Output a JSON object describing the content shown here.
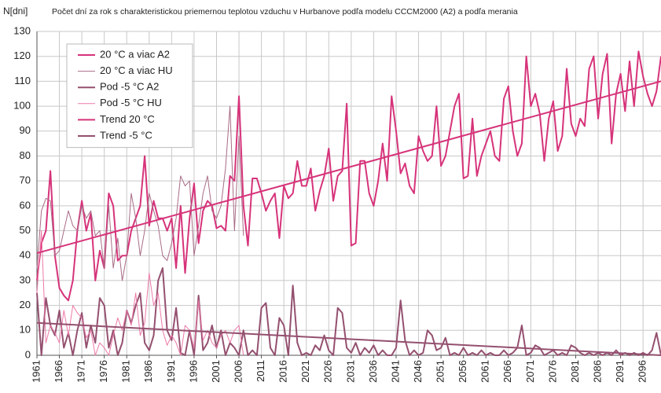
{
  "chart_data": {
    "type": "line",
    "title": "Počet dní za rok s charakteristickou priemernou teplotou vzduchu v Hurbanove podľa modelu CCCM2000 (A2) a podľa merania",
    "y_label": "N[dni]",
    "x": [
      1961,
      1962,
      1963,
      1964,
      1965,
      1966,
      1967,
      1968,
      1969,
      1970,
      1971,
      1972,
      1973,
      1974,
      1975,
      1976,
      1977,
      1978,
      1979,
      1980,
      1981,
      1982,
      1983,
      1984,
      1985,
      1986,
      1987,
      1988,
      1989,
      1990,
      1991,
      1992,
      1993,
      1994,
      1995,
      1996,
      1997,
      1998,
      1999,
      2000,
      2001,
      2002,
      2003,
      2004,
      2005,
      2006,
      2007,
      2008,
      2009,
      2010,
      2011,
      2012,
      2013,
      2014,
      2015,
      2016,
      2017,
      2018,
      2019,
      2020,
      2021,
      2022,
      2023,
      2024,
      2025,
      2026,
      2027,
      2028,
      2029,
      2030,
      2031,
      2032,
      2033,
      2034,
      2035,
      2036,
      2037,
      2038,
      2039,
      2040,
      2041,
      2042,
      2043,
      2044,
      2045,
      2046,
      2047,
      2048,
      2049,
      2050,
      2051,
      2052,
      2053,
      2054,
      2055,
      2056,
      2057,
      2058,
      2059,
      2060,
      2061,
      2062,
      2063,
      2064,
      2065,
      2066,
      2067,
      2068,
      2069,
      2070,
      2071,
      2072,
      2073,
      2074,
      2075,
      2076,
      2077,
      2078,
      2079,
      2080,
      2081,
      2082,
      2083,
      2084,
      2085,
      2086,
      2087,
      2088,
      2089,
      2090,
      2091,
      2092,
      2093,
      2094,
      2095,
      2096,
      2097,
      2098,
      2099,
      2100
    ],
    "series": [
      {
        "name": "20 °C a viac A2",
        "color": "#d6337a",
        "width": 2,
        "values": [
          30,
          45,
          50,
          74,
          40,
          27,
          24,
          22,
          30,
          50,
          62,
          50,
          57,
          30,
          42,
          35,
          65,
          60,
          38,
          40,
          40,
          50,
          55,
          60,
          80,
          52,
          62,
          55,
          55,
          50,
          55,
          35,
          60,
          33,
          55,
          69,
          45,
          58,
          62,
          60,
          51,
          52,
          50,
          72,
          70,
          104,
          60,
          44,
          71,
          71,
          65,
          58,
          62,
          65,
          47,
          68,
          63,
          65,
          78,
          68,
          68,
          75,
          58,
          66,
          72,
          83,
          62,
          72,
          74,
          101,
          44,
          45,
          78,
          78,
          65,
          60,
          70,
          85,
          70,
          104,
          90,
          73,
          77,
          68,
          65,
          88,
          82,
          78,
          80,
          100,
          76,
          80,
          90,
          100,
          105,
          71,
          72,
          95,
          72,
          80,
          85,
          90,
          80,
          78,
          103,
          108,
          90,
          80,
          85,
          120,
          100,
          105,
          97,
          78,
          95,
          102,
          82,
          88,
          115,
          93,
          88,
          95,
          92,
          115,
          120,
          95,
          113,
          121,
          85,
          105,
          113,
          98,
          118,
          100,
          122,
          112,
          105,
          100,
          106,
          120
        ]
      },
      {
        "name": "20 °C a viac HU",
        "color": "#a86b86",
        "width": 1,
        "x": [
          1961,
          1962,
          1963,
          1964,
          1965,
          1966,
          1967,
          1968,
          1969,
          1970,
          1971,
          1972,
          1973,
          1974,
          1975,
          1976,
          1977,
          1978,
          1979,
          1980,
          1981,
          1982,
          1983,
          1984,
          1985,
          1986,
          1987,
          1988,
          1989,
          1990,
          1991,
          1992,
          1993,
          1994,
          1995,
          1996,
          1997,
          1998,
          1999,
          2000,
          2001,
          2002,
          2003,
          2004,
          2005,
          2006,
          2007
        ],
        "values": [
          35,
          58,
          63,
          62,
          40,
          42,
          50,
          58,
          52,
          50,
          60,
          55,
          58,
          48,
          50,
          35,
          60,
          35,
          47,
          30,
          40,
          65,
          55,
          40,
          50,
          65,
          58,
          52,
          40,
          38,
          45,
          55,
          72,
          68,
          70,
          40,
          52,
          65,
          72,
          58,
          55,
          60,
          75,
          100,
          50,
          88,
          48
        ]
      },
      {
        "name": "Pod -5 °C A2",
        "color": "#94506f",
        "width": 2,
        "values": [
          25,
          0,
          23,
          12,
          8,
          18,
          3,
          9,
          0,
          10,
          17,
          3,
          12,
          5,
          23,
          20,
          3,
          10,
          0,
          5,
          18,
          13,
          20,
          25,
          5,
          2,
          8,
          30,
          35,
          10,
          6,
          19,
          1,
          0,
          10,
          0,
          24,
          2,
          5,
          12,
          3,
          10,
          0,
          5,
          3,
          0,
          10,
          0,
          2,
          0,
          19,
          21,
          3,
          0,
          15,
          12,
          0,
          28,
          5,
          0,
          1,
          0,
          4,
          2,
          8,
          2,
          0,
          19,
          17,
          3,
          1,
          5,
          0,
          3,
          1,
          4,
          0,
          2,
          0,
          0,
          3,
          22,
          6,
          0,
          2,
          0,
          1,
          10,
          8,
          2,
          3,
          7,
          0,
          1,
          0,
          3,
          0,
          1,
          0,
          2,
          0,
          1,
          0,
          0,
          2,
          0,
          1,
          3,
          12,
          0,
          1,
          4,
          3,
          0,
          1,
          2,
          0,
          1,
          0,
          4,
          3,
          1,
          0,
          1,
          0,
          1,
          0,
          1,
          0,
          2,
          0,
          1,
          0,
          1,
          0,
          1,
          0,
          2,
          9,
          0
        ]
      },
      {
        "name": "Pod -5 °C HU",
        "color": "#ec7aa8",
        "width": 1,
        "x": [
          1961,
          1962,
          1963,
          1964,
          1965,
          1966,
          1967,
          1968,
          1969,
          1970,
          1971,
          1972,
          1973,
          1974,
          1975,
          1976,
          1977,
          1978,
          1979,
          1980,
          1981,
          1982,
          1983,
          1984,
          1985,
          1986,
          1987,
          1988,
          1989,
          1990,
          1991,
          1992,
          1993,
          1994,
          1995,
          1996,
          1997,
          1998,
          1999,
          2000,
          2001,
          2002,
          2003,
          2004,
          2005,
          2006,
          2007
        ],
        "values": [
          25,
          50,
          5,
          12,
          9,
          5,
          18,
          8,
          20,
          17,
          15,
          7,
          10,
          0,
          5,
          3,
          0,
          8,
          15,
          10,
          18,
          12,
          25,
          8,
          13,
          33,
          20,
          25,
          10,
          4,
          8,
          5,
          0,
          12,
          10,
          3,
          22,
          6,
          10,
          5,
          3,
          8,
          10,
          5,
          10,
          12,
          0
        ]
      },
      {
        "name": "Trend 20 °C",
        "color": "#d6337a",
        "width": 2,
        "x": [
          1961,
          2100
        ],
        "values": [
          41,
          110
        ]
      },
      {
        "name": "Trend -5 °C",
        "color": "#94506f",
        "width": 2,
        "x": [
          1961,
          2100
        ],
        "values": [
          13,
          0
        ]
      }
    ],
    "xlim": [
      1961,
      2100
    ],
    "xticks": [
      1961,
      1966,
      1971,
      1976,
      1981,
      1986,
      1991,
      1996,
      2001,
      2006,
      2011,
      2016,
      2021,
      2026,
      2031,
      2036,
      2041,
      2046,
      2051,
      2056,
      2061,
      2066,
      2071,
      2076,
      2081,
      2086,
      2091,
      2096
    ],
    "ylim": [
      0,
      130
    ],
    "yticks": [
      0,
      10,
      20,
      30,
      40,
      50,
      60,
      70,
      80,
      90,
      100,
      110,
      120,
      130
    ],
    "grid": true,
    "legend": "upper left"
  }
}
